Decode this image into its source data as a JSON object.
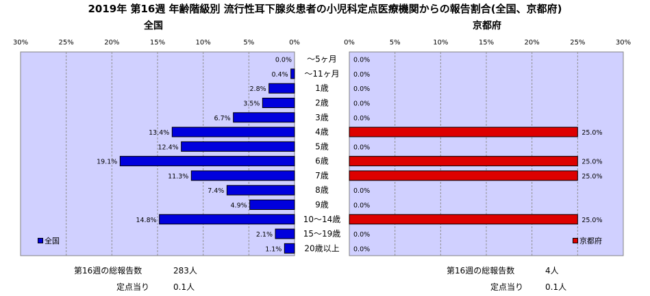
{
  "title": "2019年 第16週 年齢階級別 流行性耳下腺炎患者の小児科定点医療機関からの報告割合(全国、京都府)",
  "colors": {
    "national": "#0000dd",
    "kyoto": "#dd0000",
    "plot_bg": "#d0d0ff"
  },
  "chart_data": [
    {
      "type": "bar",
      "orientation": "horizontal-reversed",
      "title": "全国",
      "legend": "全国",
      "xlim": [
        0,
        30
      ],
      "ticks": [
        "30%",
        "25%",
        "20%",
        "15%",
        "10%",
        "5%",
        "0%"
      ],
      "tick_values": [
        30,
        25,
        20,
        15,
        10,
        5,
        0
      ],
      "categories": [
        "～5ヶ月",
        "～11ヶ月",
        "1歳",
        "2歳",
        "3歳",
        "4歳",
        "5歳",
        "6歳",
        "7歳",
        "8歳",
        "9歳",
        "10～14歳",
        "15～19歳",
        "20歳以上"
      ],
      "values": [
        0.0,
        0.4,
        2.8,
        3.5,
        6.7,
        13.4,
        12.4,
        19.1,
        11.3,
        7.4,
        4.9,
        14.8,
        2.1,
        1.1
      ],
      "labels": [
        "0.0%",
        "0.4%",
        "2.8%",
        "3.5%",
        "6.7%",
        "13.4%",
        "12.4%",
        "19.1%",
        "11.3%",
        "7.4%",
        "4.9%",
        "14.8%",
        "2.1%",
        "1.1%"
      ]
    },
    {
      "type": "bar",
      "orientation": "horizontal",
      "title": "京都府",
      "legend": "京都府",
      "xlim": [
        0,
        30
      ],
      "ticks": [
        "0%",
        "5%",
        "10%",
        "15%",
        "20%",
        "25%",
        "30%"
      ],
      "tick_values": [
        0,
        5,
        10,
        15,
        20,
        25,
        30
      ],
      "categories": [
        "～5ヶ月",
        "～11ヶ月",
        "1歳",
        "2歳",
        "3歳",
        "4歳",
        "5歳",
        "6歳",
        "7歳",
        "8歳",
        "9歳",
        "10～14歳",
        "15～19歳",
        "20歳以上"
      ],
      "values": [
        0.0,
        0.0,
        0.0,
        0.0,
        0.0,
        25.0,
        0.0,
        25.0,
        25.0,
        0.0,
        0.0,
        25.0,
        0.0,
        0.0
      ],
      "labels": [
        "0.0%",
        "0.0%",
        "0.0%",
        "0.0%",
        "0.0%",
        "25.0%",
        "0.0%",
        "25.0%",
        "25.0%",
        "0.0%",
        "0.0%",
        "25.0%",
        "0.0%",
        "0.0%"
      ]
    }
  ],
  "summary": {
    "national": {
      "total_label": "第16週の総報告数",
      "total_value": "283人",
      "per_label": "定点当り",
      "per_value": "0.1人"
    },
    "kyoto": {
      "total_label": "第16週の総報告数",
      "total_value": "4人",
      "per_label": "定点当り",
      "per_value": "0.1人"
    }
  }
}
